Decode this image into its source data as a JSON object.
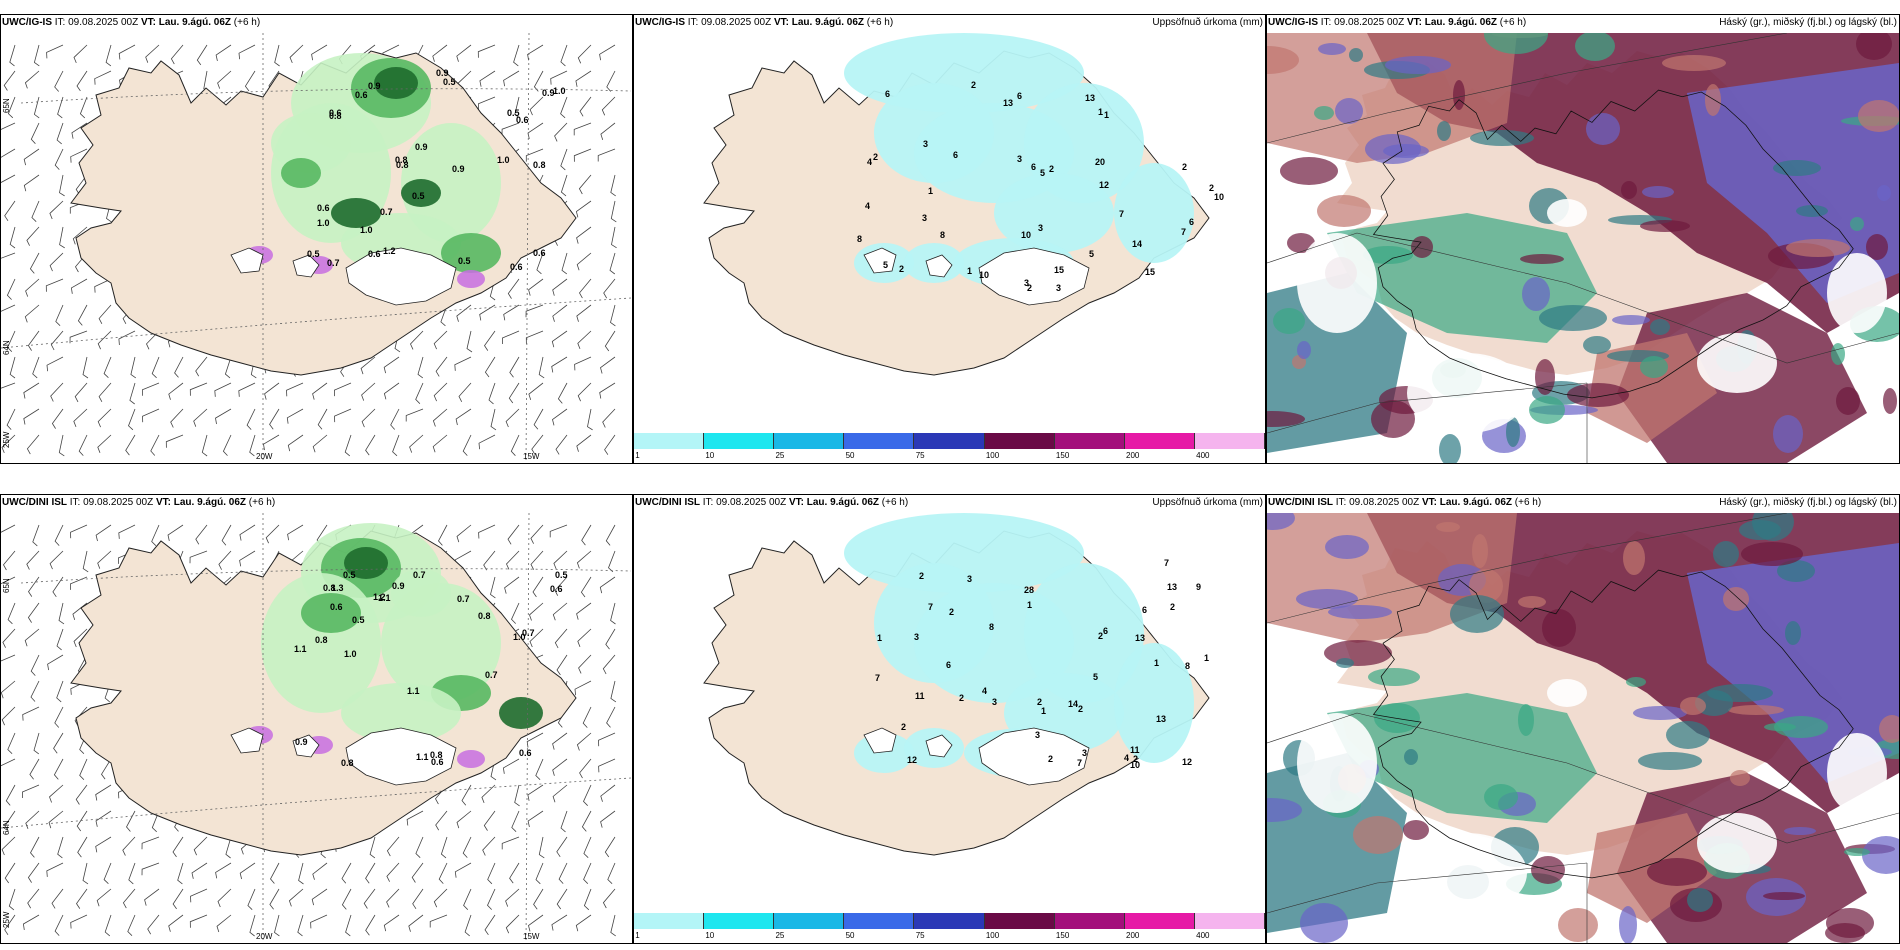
{
  "rows": [
    {
      "model": "UWC/IG-IS",
      "it_label": "IT:",
      "it_value": "09.08.2025 00Z",
      "vt_label": "VT:",
      "vt_value": "Lau. 9.ágú. 06Z",
      "offset": "(+6 h)",
      "wind_labels": [
        "0.6",
        "0.8",
        "0.8",
        "0.6",
        "1.0",
        "0.8",
        "0.9",
        "0.6",
        "0.7",
        "0.9",
        "0.5",
        "0.9",
        "0.6",
        "1.0",
        "1.2",
        "0.5",
        "0.7",
        "0.6",
        "0.9",
        "0.5",
        "0.6",
        "0.8",
        "1.0",
        "0.9",
        "0.5",
        "0.6",
        "1.0",
        "0.5"
      ],
      "precip_labels": [
        "13",
        "13",
        "6",
        "8",
        "10",
        "10",
        "7",
        "6",
        "5",
        "6",
        "3",
        "4",
        "3",
        "15",
        "2",
        "2",
        "12",
        "6",
        "3",
        "2",
        "3",
        "15",
        "3",
        "5",
        "6",
        "10",
        "20",
        "14",
        "5",
        "7",
        "2",
        "2",
        "1",
        "1",
        "1",
        "2",
        "2",
        "4",
        "3",
        "8",
        "1"
      ],
      "grid": {
        "lat_top": "65N",
        "lat_bottom": "64N",
        "lon_left": "25W",
        "lon_mid": "20W",
        "lon_right": "15W"
      },
      "precip_title": "Uppsöfnuð úrkoma (mm)",
      "cloud_title": "Háský (gr.), miðský (fj.bl.) og lágský (bl.)",
      "colorbar_ticks": [
        "1",
        "10",
        "25",
        "50",
        "75",
        "100",
        "150",
        "200",
        "400"
      ]
    },
    {
      "model": "UWC/DINI ISL",
      "it_label": "IT:",
      "it_value": "09.08.2025 00Z",
      "vt_label": "VT:",
      "vt_value": "Lau. 9.ágú. 06Z",
      "offset": "(+6 h)",
      "wind_labels": [
        "0.6",
        "1.1",
        "0.9",
        "0.8",
        "0.7",
        "0.5",
        "0.7",
        "0.8",
        "1.1",
        "1.3",
        "1.0",
        "0.6",
        "0.7",
        "0.8",
        "0.6",
        "0.7",
        "0.5",
        "1.1",
        "0.8",
        "0.6",
        "1.0",
        "1.2",
        "0.9",
        "0.5",
        "1.1",
        "0.8"
      ],
      "precip_labels": [
        "12",
        "11",
        "6",
        "12",
        "8",
        "9",
        "2",
        "8",
        "7",
        "4",
        "2",
        "2",
        "4",
        "3",
        "3",
        "2",
        "1",
        "2",
        "1",
        "3",
        "13",
        "3",
        "2",
        "7",
        "7",
        "6",
        "2",
        "1",
        "10",
        "2",
        "11",
        "1",
        "13",
        "3",
        "7",
        "5",
        "28",
        "6",
        "14",
        "13",
        "2",
        "1",
        "2"
      ],
      "grid": {
        "lat_top": "65N",
        "lat_bottom": "64N",
        "lon_left": "25W",
        "lon_mid": "20W",
        "lon_right": "15W"
      },
      "precip_title": "Uppsöfnuð úrkoma (mm)",
      "cloud_title": "Háský (gr.), miðský (fj.bl.) og lágský (bl.)",
      "colorbar_ticks": [
        "1",
        "10",
        "25",
        "50",
        "75",
        "100",
        "150",
        "200",
        "400"
      ]
    }
  ],
  "colorbar_colors": [
    "#b3f5f7",
    "#1ee6ef",
    "#1ab8e6",
    "#3a6ae8",
    "#2b38b6",
    "#6a0a46",
    "#a30f7b",
    "#e61aa6",
    "#f5b4ee"
  ],
  "colors": {
    "land": "#f3e4d4",
    "coast": "#222222",
    "wind_green_light": "#c7f2c3",
    "wind_green_mid": "#58b862",
    "wind_green_dark": "#1e6b2e",
    "wind_purple": "#c76ee0",
    "precip_cyan": "#b7f4f6",
    "cloud_high": "#c0766f",
    "cloud_mid": "#6e1a3d",
    "cloud_low": "#6a64c8",
    "cloud_green": "#3aa884",
    "cloud_teal": "#2f7a84"
  }
}
